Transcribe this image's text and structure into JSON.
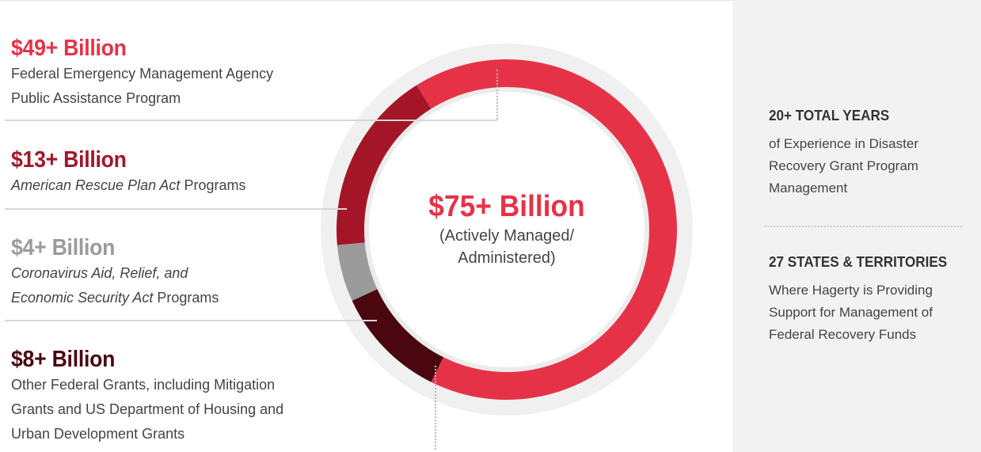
{
  "chart_data": {
    "type": "pie",
    "style": "donut",
    "center_value": "$75+ Billion",
    "center_sub": "(Actively Managed/\nAdministered)",
    "categories": [
      {
        "amount": "$49+ Billion",
        "value": 49,
        "color": "#e63247",
        "desc": [
          [
            "Federal Emergency Management Agency"
          ],
          [
            "Public Assistance Program"
          ]
        ]
      },
      {
        "amount": "$13+ Billion",
        "value": 13,
        "color": "#a51528",
        "desc": [
          [
            {
              "t": "American Rescue Plan Act",
              "i": true
            },
            {
              "t": " Programs"
            }
          ]
        ]
      },
      {
        "amount": "$4+ Billion",
        "value": 4,
        "color": "#9b9b9b",
        "desc": [
          [
            {
              "t": "Coronavirus Aid, Relief, and",
              "i": true
            }
          ],
          [
            {
              "t": "Economic Security Act",
              "i": true
            },
            {
              "t": " Programs"
            }
          ]
        ]
      },
      {
        "amount": "$8+ Billion",
        "value": 8,
        "color": "#4a0710",
        "desc": [
          [
            "Other Federal Grants, including Mitigation"
          ],
          [
            "Grants and US Department of Housing and"
          ],
          [
            "Urban Development Grants"
          ]
        ]
      }
    ]
  },
  "stats": [
    {
      "heading": "20+ TOTAL YEARS",
      "text": "of Experience in Disaster\nRecovery Grant Program\nManagement"
    },
    {
      "heading": "27 STATES & TERRITORIES",
      "text": "Where Hagerty is Providing\nSupport for Management of\nFederal Recovery Funds"
    }
  ],
  "colors": {
    "ring_bg": "#f0f0f0",
    "center_value": "#e63247"
  }
}
